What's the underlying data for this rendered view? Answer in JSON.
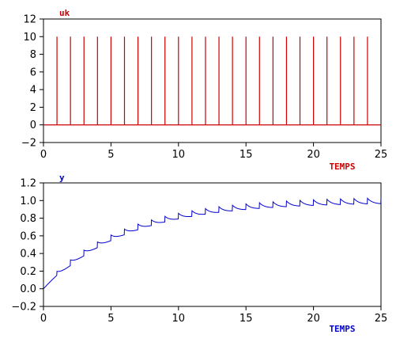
{
  "chart_data": [
    {
      "type": "line",
      "variant": "impulse",
      "series": [
        {
          "name": "uk",
          "color": "#cc0000",
          "x": [
            0,
            1,
            2,
            3,
            4,
            5,
            6,
            7,
            8,
            9,
            10,
            11,
            12,
            13,
            14,
            15,
            16,
            17,
            18,
            19,
            20,
            21,
            22,
            23,
            24,
            25
          ],
          "values": [
            0,
            10,
            10,
            10,
            10,
            10,
            10,
            10,
            10,
            10,
            10,
            10,
            10,
            10,
            10,
            10,
            10,
            10,
            10,
            10,
            10,
            10,
            10,
            10,
            10,
            0
          ]
        }
      ],
      "xlabel": "TEMPS",
      "xlim": [
        0,
        25
      ],
      "ylim": [
        -2,
        12
      ],
      "xticks": [
        0,
        5,
        10,
        15,
        20,
        25
      ],
      "yticks": [
        -2,
        0,
        2,
        4,
        6,
        8,
        10,
        12
      ],
      "ytick_labels": [
        "−2",
        "0",
        "2",
        "4",
        "6",
        "8",
        "10",
        "12"
      ],
      "grid": false
    },
    {
      "type": "line",
      "series": [
        {
          "name": "y",
          "color": "#0000cc",
          "envelope_tau": 6.0,
          "ripple": 0.07,
          "decay": 2.5
        }
      ],
      "xlabel": "TEMPS",
      "xlim": [
        0,
        25
      ],
      "ylim": [
        -0.2,
        1.2
      ],
      "xticks": [
        0,
        5,
        10,
        15,
        20,
        25
      ],
      "yticks": [
        -0.2,
        0.0,
        0.2,
        0.4,
        0.6,
        0.8,
        1.0,
        1.2
      ],
      "ytick_labels": [
        "−0.2",
        "0.0",
        "0.2",
        "0.4",
        "0.6",
        "0.8",
        "1.0",
        "1.2"
      ],
      "grid": false
    }
  ]
}
